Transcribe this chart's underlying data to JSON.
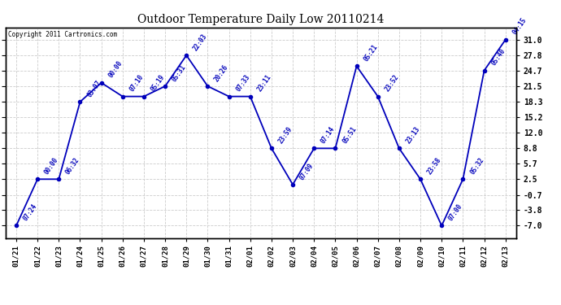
{
  "title": "Outdoor Temperature Daily Low 20110214",
  "copyright": "Copyright 2011 Cartronics.com",
  "dates": [
    "01/21",
    "01/22",
    "01/23",
    "01/24",
    "01/25",
    "01/26",
    "01/27",
    "01/28",
    "01/29",
    "01/30",
    "01/31",
    "02/01",
    "02/02",
    "02/03",
    "02/04",
    "02/05",
    "02/06",
    "02/07",
    "02/08",
    "02/09",
    "02/10",
    "02/11",
    "02/12",
    "02/13"
  ],
  "values": [
    -7.0,
    2.5,
    2.5,
    18.3,
    22.2,
    19.4,
    19.4,
    21.5,
    27.8,
    21.5,
    19.4,
    19.4,
    8.8,
    1.4,
    8.8,
    8.8,
    25.6,
    19.4,
    8.8,
    2.5,
    -7.0,
    2.5,
    24.7,
    31.0
  ],
  "annotations": [
    "07:24",
    "00:00",
    "06:32",
    "03:07",
    "00:00",
    "07:10",
    "05:19",
    "05:31",
    "22:03",
    "20:26",
    "07:33",
    "23:11",
    "23:59",
    "07:09",
    "07:14",
    "05:51",
    "05:21",
    "23:52",
    "23:13",
    "23:58",
    "07:00",
    "05:32",
    "05:40",
    "04:15"
  ],
  "line_color": "#0000BB",
  "marker_color": "#0000BB",
  "bg_color": "#FFFFFF",
  "grid_color": "#CCCCCC",
  "yticks": [
    31.0,
    27.8,
    24.7,
    21.5,
    18.3,
    15.2,
    12.0,
    8.8,
    5.7,
    2.5,
    -0.7,
    -3.8,
    -7.0
  ],
  "ylim": [
    -9.5,
    33.5
  ],
  "figsize": [
    6.9,
    3.75
  ],
  "dpi": 100
}
